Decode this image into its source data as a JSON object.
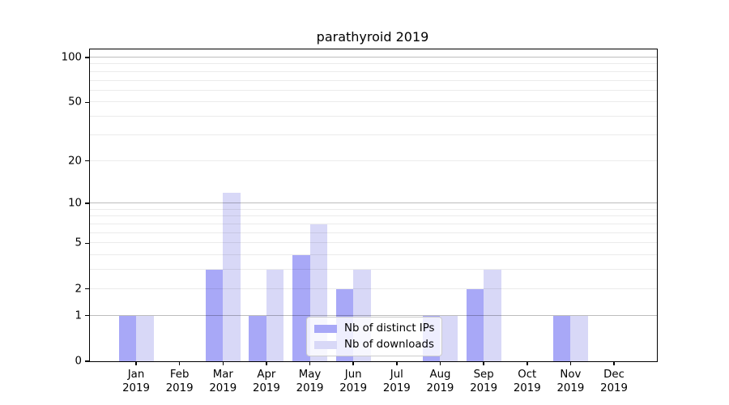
{
  "chart_data": {
    "type": "bar",
    "title": "parathyroid 2019",
    "categories": [
      "Jan",
      "Feb",
      "Mar",
      "Apr",
      "May",
      "Jun",
      "Jul",
      "Aug",
      "Sep",
      "Oct",
      "Nov",
      "Dec"
    ],
    "year": "2019",
    "series": [
      {
        "name": "Nb of distinct IPs",
        "color": "#a8a8f7",
        "values": [
          1,
          0,
          3,
          1,
          4,
          2,
          0,
          1,
          2,
          0,
          1,
          0
        ]
      },
      {
        "name": "Nb of downloads",
        "color": "#d8d8f7",
        "values": [
          1,
          0,
          12,
          3,
          7,
          3,
          0,
          1,
          3,
          0,
          1,
          0
        ]
      }
    ],
    "xlabel": "",
    "ylabel": "",
    "y_axis": {
      "ticks": [
        0,
        1,
        2,
        5,
        10,
        20,
        50,
        100
      ],
      "tick_labels": [
        "0",
        "1",
        "2",
        "5",
        "10",
        "20",
        "50",
        "100"
      ],
      "scale": "log10(1+v)",
      "max_value": 113,
      "major_gridlines": [
        1,
        10,
        100
      ],
      "minor_gridlines": [
        2,
        3,
        4,
        5,
        6,
        7,
        8,
        9,
        20,
        30,
        40,
        50,
        60,
        70,
        80,
        90
      ]
    },
    "grid": true,
    "legend_position": "lower-center",
    "colors": {
      "major_grid": "#bdbdbd",
      "minor_grid": "#ebebeb",
      "spine": "#000000",
      "background": "#ffffff"
    }
  }
}
